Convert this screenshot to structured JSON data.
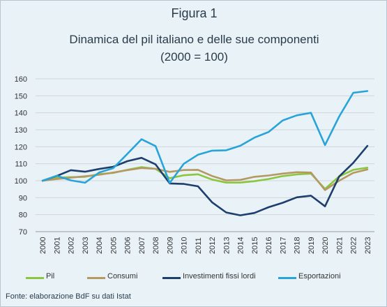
{
  "figure_label": "Figura 1",
  "title": "Dinamica del pil italiano e delle sue componenti",
  "subtitle": "(2000 = 100)",
  "source": "Fonte: elaborazione BdF su dati Istat",
  "chart_data": {
    "type": "line",
    "title": "Dinamica del pil italiano e delle sue componenti",
    "subtitle": "(2000 = 100)",
    "xlabel": "",
    "ylabel": "",
    "ylim": [
      70,
      160
    ],
    "yticks": [
      70,
      80,
      90,
      100,
      110,
      120,
      130,
      140,
      150,
      160
    ],
    "grid": true,
    "legend_position": "bottom",
    "x": [
      "2000",
      "2001",
      "2002",
      "2003",
      "2004",
      "2005",
      "2006",
      "2007",
      "2008",
      "2009",
      "2010",
      "2011",
      "2012",
      "2013",
      "2014",
      "2015",
      "2016",
      "2017",
      "2018",
      "2019",
      "2020",
      "2021",
      "2022",
      "2023"
    ],
    "series": [
      {
        "name": "Pil",
        "color": "#8cc63f",
        "values": [
          100,
          101.8,
          102.1,
          102.3,
          103.9,
          104.6,
          106.4,
          108.0,
          107.0,
          101.5,
          103.2,
          103.8,
          100.7,
          98.9,
          98.9,
          99.7,
          101.0,
          102.7,
          103.7,
          104.2,
          95.2,
          102.5,
          106.4,
          107.7
        ]
      },
      {
        "name": "Consumi",
        "color": "#b59862",
        "values": [
          100,
          101.0,
          101.8,
          102.6,
          103.5,
          104.8,
          106.2,
          107.5,
          107.0,
          105.2,
          106.3,
          106.4,
          102.8,
          100.2,
          100.5,
          102.3,
          103.1,
          104.2,
          105.0,
          104.8,
          94.5,
          100.0,
          104.6,
          106.6
        ]
      },
      {
        "name": "Investimenti fissi lordi",
        "color": "#1e3e6e",
        "values": [
          100,
          102.8,
          106.2,
          105.3,
          106.9,
          108.2,
          111.5,
          113.5,
          109.6,
          98.4,
          98.1,
          96.7,
          87.3,
          81.3,
          79.6,
          81.0,
          84.4,
          87.0,
          90.2,
          91.2,
          84.9,
          102.5,
          110.5,
          120.5
        ]
      },
      {
        "name": "Esportazioni",
        "color": "#29a4d9",
        "values": [
          100,
          102.9,
          100.2,
          98.8,
          104.8,
          107.4,
          115.8,
          124.4,
          120.4,
          98.7,
          110.0,
          115.3,
          117.7,
          117.9,
          120.6,
          125.4,
          128.7,
          135.5,
          138.5,
          140.0,
          121.0,
          137.8,
          151.8,
          152.8
        ]
      }
    ]
  }
}
